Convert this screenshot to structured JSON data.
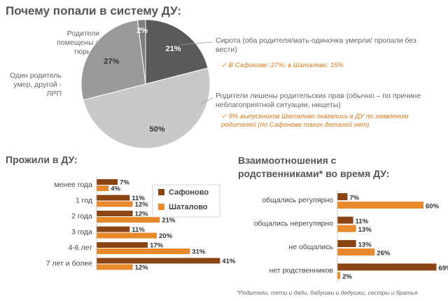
{
  "title": "Почему попали в систему ДУ:",
  "colors": {
    "sofonovo": "#8b4513",
    "shatalovo": "#e88a2c",
    "pie": [
      "#5a5a5a",
      "#c9c9c9",
      "#999999",
      "#7e7e7e"
    ],
    "note_orange": "#d9781c"
  },
  "pie_labels": {
    "orphan": "Сирота  (оба родителя/мать-одиночка умерли/ пропали без вести)",
    "orphan_note": "В Сафонове: 27%; в Шаталово: 15%",
    "deprived": "Родители лишены родительских прав (обычно – по причине неблагоприятной ситуации, нищеты)",
    "deprived_note": "9% выпускников Шаталово оказались в ДУ по заявлению родителей (по Сафонове таких деталей нет)",
    "one_parent": "Один родитель умер, другой - ЛРП",
    "prison": "Родители помещены в тюрьму"
  },
  "left_title": "Прожили в ДУ:",
  "right_title_line1": "Взаимоотношения с",
  "right_title_line2": "родственниками* во время ДУ:",
  "legend": {
    "s": "Сафоново",
    "sh": "Шаталово"
  },
  "footnote": "*Родители, тети и дяди, бабушки и дедушки, сестры и братья",
  "chart_data": [
    {
      "type": "pie",
      "title": "Почему попали в систему ДУ:",
      "categories": [
        "Сирота (оба родителя/мать-одиночка умерли/ пропали без вести)",
        "Родители лишены родительских прав (обычно – по причине неблагоприятной ситуации, нищеты)",
        "Один родитель умер, другой - ЛРП",
        "Родители помещены в тюрьму"
      ],
      "values": [
        21,
        50,
        27,
        2
      ],
      "value_labels": [
        "21%",
        "50%",
        "27%",
        "2%"
      ]
    },
    {
      "type": "bar",
      "orientation": "horizontal",
      "title": "Прожили в ДУ:",
      "categories": [
        "менее года",
        "1 год",
        "2 года",
        "3 года",
        "4-6 лет",
        "7 лет и более"
      ],
      "series": [
        {
          "name": "Сафоново",
          "values": [
            7,
            11,
            12,
            11,
            17,
            41
          ]
        },
        {
          "name": "Шаталово",
          "values": [
            4,
            12,
            21,
            20,
            31,
            12
          ]
        }
      ],
      "legend_position": "right"
    },
    {
      "type": "bar",
      "orientation": "horizontal",
      "title": "Взаимоотношения с родственниками* во время ДУ:",
      "categories": [
        "общались регулярно",
        "общались нерегулярно",
        "не общались",
        "нет родственников"
      ],
      "series": [
        {
          "name": "Сафоново",
          "values": [
            7,
            11,
            13,
            69
          ]
        },
        {
          "name": "Шаталово",
          "values": [
            60,
            13,
            26,
            2
          ]
        }
      ]
    }
  ]
}
